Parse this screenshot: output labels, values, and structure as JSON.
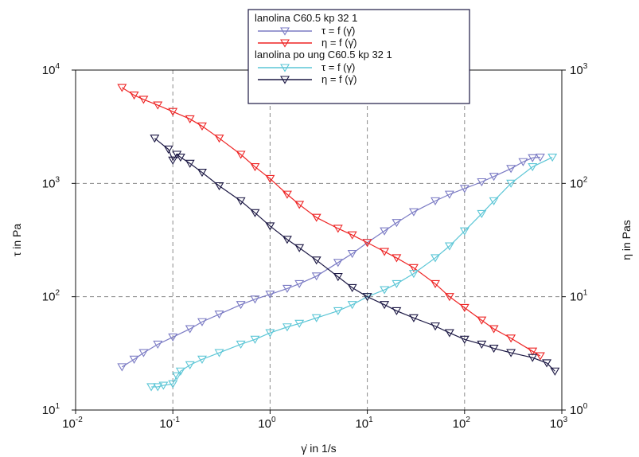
{
  "chart_data": {
    "type": "scatter",
    "x_scale": "log",
    "y_scale": "log",
    "y2_scale": "log",
    "grid": true,
    "legend_position": "top-center",
    "xlabel": "γ̇ in 1/s",
    "ylabel": "τ in Pa",
    "y2label": "η in Pas",
    "xlim": [
      0.01,
      1000
    ],
    "ylim": [
      10,
      10000
    ],
    "y2lim": [
      1,
      1000
    ],
    "x_ticks": [
      {
        "base": "10",
        "exp": "-2"
      },
      {
        "base": "10",
        "exp": "-1"
      },
      {
        "base": "10",
        "exp": "0"
      },
      {
        "base": "10",
        "exp": "1"
      },
      {
        "base": "10",
        "exp": "2"
      },
      {
        "base": "10",
        "exp": "3"
      }
    ],
    "y_ticks": [
      {
        "base": "10",
        "exp": "1"
      },
      {
        "base": "10",
        "exp": "2"
      },
      {
        "base": "10",
        "exp": "3"
      },
      {
        "base": "10",
        "exp": "4"
      }
    ],
    "y2_ticks": [
      {
        "base": "10",
        "exp": "0"
      },
      {
        "base": "10",
        "exp": "1"
      },
      {
        "base": "10",
        "exp": "2"
      },
      {
        "base": "10",
        "exp": "3"
      }
    ],
    "legend_groups": [
      {
        "title": "lanolina C60.5 kp 32 1",
        "entries": [
          {
            "label": "τ = f (γ̇)",
            "series_index": 0
          },
          {
            "label": "η = f (γ̇)",
            "series_index": 1
          }
        ]
      },
      {
        "title": "lanolina po ung C60.5 kp 32 1",
        "entries": [
          {
            "label": "τ = f (γ̇)",
            "series_index": 2
          },
          {
            "label": "η = f (γ̇)",
            "series_index": 3
          }
        ]
      }
    ],
    "series": [
      {
        "color": "#7b7bc4",
        "axis": "left",
        "x": [
          0.03,
          0.04,
          0.05,
          0.07,
          0.1,
          0.15,
          0.2,
          0.3,
          0.5,
          0.7,
          1,
          1.5,
          2,
          3,
          5,
          7,
          10,
          15,
          20,
          30,
          50,
          70,
          100,
          150,
          200,
          300,
          400,
          500,
          600
        ],
        "y": [
          24,
          28,
          32,
          38,
          44,
          52,
          60,
          70,
          85,
          95,
          105,
          118,
          130,
          152,
          200,
          240,
          300,
          380,
          450,
          560,
          700,
          800,
          900,
          1030,
          1150,
          1350,
          1550,
          1680,
          1700
        ]
      },
      {
        "color": "#ee2424",
        "axis": "right",
        "x": [
          0.03,
          0.04,
          0.05,
          0.07,
          0.1,
          0.15,
          0.2,
          0.3,
          0.5,
          0.7,
          1,
          1.5,
          2,
          3,
          5,
          7,
          10,
          15,
          20,
          30,
          50,
          70,
          100,
          150,
          200,
          300,
          500,
          600
        ],
        "y": [
          700,
          600,
          550,
          490,
          430,
          370,
          320,
          250,
          180,
          140,
          110,
          80,
          65,
          50,
          40,
          35,
          30,
          25,
          22,
          18,
          13,
          10,
          8,
          6.2,
          5.2,
          4.3,
          3.3,
          3.0
        ]
      },
      {
        "color": "#5cc6d6",
        "axis": "left",
        "x": [
          0.06,
          0.07,
          0.08,
          0.1,
          0.11,
          0.12,
          0.15,
          0.2,
          0.3,
          0.5,
          0.7,
          1,
          1.5,
          2,
          3,
          5,
          7,
          10,
          15,
          20,
          30,
          50,
          70,
          100,
          150,
          200,
          300,
          500,
          800
        ],
        "y": [
          16,
          16,
          16.5,
          17,
          20,
          22,
          25,
          28,
          32,
          38,
          42,
          48,
          54,
          58,
          65,
          75,
          85,
          100,
          115,
          130,
          160,
          220,
          280,
          380,
          540,
          700,
          1000,
          1400,
          1700
        ]
      },
      {
        "color": "#1c1844",
        "axis": "right",
        "x": [
          0.065,
          0.09,
          0.1,
          0.11,
          0.12,
          0.15,
          0.2,
          0.3,
          0.5,
          0.7,
          1,
          1.5,
          2,
          3,
          5,
          7,
          10,
          15,
          20,
          30,
          50,
          70,
          100,
          150,
          200,
          300,
          500,
          700,
          850
        ],
        "y": [
          250,
          200,
          160,
          180,
          170,
          150,
          125,
          95,
          70,
          55,
          42,
          32,
          27,
          21,
          15,
          12,
          10,
          8.5,
          7.5,
          6.5,
          5.5,
          4.8,
          4.2,
          3.8,
          3.5,
          3.2,
          2.9,
          2.6,
          2.2
        ]
      }
    ]
  }
}
